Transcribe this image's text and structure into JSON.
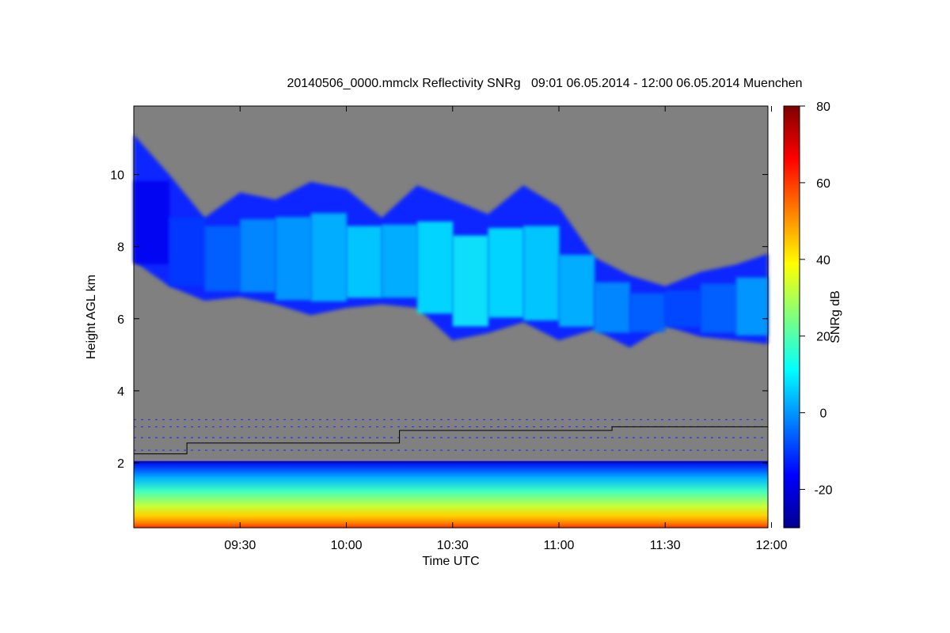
{
  "chart_data": {
    "type": "heatmap",
    "title": "20140506_0000.mmclx Reflectivity SNRg   09:01 06.05.2014 - 12:00 06.05.2014 Muenchen",
    "xlabel": "Time UTC",
    "ylabel": "Height AGL km",
    "xlim": [
      "09:01",
      "12:00"
    ],
    "ylim": [
      0.2,
      11.9
    ],
    "x_tick_labels": [
      "09:30",
      "10:00",
      "10:30",
      "11:00",
      "11:30",
      "12:00"
    ],
    "x_tick_minutes": [
      30,
      60,
      90,
      120,
      150,
      180
    ],
    "y_ticks": [
      2,
      4,
      6,
      8,
      10
    ],
    "y_tick_labels": [
      "2",
      "4",
      "6",
      "8",
      "10"
    ],
    "colorbar": {
      "label": "SNRg dB",
      "range": [
        -30,
        80
      ],
      "ticks": [
        -20,
        0,
        20,
        40,
        60,
        80
      ],
      "tick_labels": [
        "-20",
        "0",
        "20",
        "40",
        "60",
        "80"
      ],
      "colormap": "jet"
    },
    "background_color": "#808080",
    "cloud_layer": {
      "time_minutes": [
        0,
        10,
        20,
        30,
        40,
        50,
        60,
        70,
        80,
        90,
        100,
        110,
        120,
        130,
        140,
        150,
        160,
        170,
        179
      ],
      "top_km": [
        11.1,
        10.0,
        8.8,
        9.5,
        9.3,
        9.8,
        9.6,
        8.8,
        9.7,
        9.3,
        8.9,
        9.7,
        9.1,
        7.7,
        7.2,
        6.9,
        7.3,
        7.5,
        7.8
      ],
      "base_km": [
        7.6,
        6.9,
        6.5,
        6.6,
        6.4,
        6.1,
        6.3,
        6.4,
        6.3,
        5.4,
        5.6,
        5.9,
        5.4,
        5.7,
        5.2,
        5.8,
        5.5,
        5.4,
        5.3
      ],
      "snr_db": [
        -18,
        -10,
        -5,
        0,
        2,
        5,
        8,
        5,
        10,
        12,
        10,
        8,
        5,
        0,
        -5,
        -8,
        -5,
        2,
        5
      ]
    },
    "boundary_layer": {
      "time_minutes": [
        0,
        15,
        15,
        75,
        75,
        135,
        135,
        179
      ],
      "top_km": [
        2.25,
        2.25,
        2.55,
        2.55,
        2.9,
        2.9,
        3.0,
        3.0
      ]
    }
  }
}
